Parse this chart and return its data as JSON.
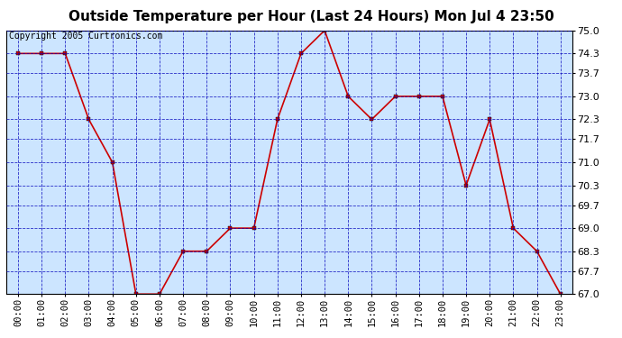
{
  "title": "Outside Temperature per Hour (Last 24 Hours) Mon Jul 4 23:50",
  "copyright": "Copyright 2005 Curtronics.com",
  "hours": [
    "00:00",
    "01:00",
    "02:00",
    "03:00",
    "04:00",
    "05:00",
    "06:00",
    "07:00",
    "08:00",
    "09:00",
    "10:00",
    "11:00",
    "12:00",
    "13:00",
    "14:00",
    "15:00",
    "16:00",
    "17:00",
    "18:00",
    "19:00",
    "20:00",
    "21:00",
    "22:00",
    "23:00"
  ],
  "temperatures": [
    74.3,
    74.3,
    74.3,
    72.3,
    71.0,
    67.0,
    67.0,
    68.3,
    68.3,
    69.0,
    69.0,
    72.3,
    74.3,
    75.0,
    73.0,
    72.3,
    73.0,
    73.0,
    73.0,
    70.3,
    72.3,
    69.0,
    68.3,
    67.0
  ],
  "ylim": [
    67.0,
    75.0
  ],
  "yticks": [
    67.0,
    67.7,
    68.3,
    69.0,
    69.7,
    70.3,
    71.0,
    71.7,
    72.3,
    73.0,
    73.7,
    74.3,
    75.0
  ],
  "line_color": "#cc0000",
  "marker_color": "#cc0000",
  "bg_color": "#cce5ff",
  "grid_color": "#0000bb",
  "title_fontsize": 11,
  "copyright_fontsize": 7,
  "tick_fontsize": 7.5,
  "ytick_fontsize": 8
}
